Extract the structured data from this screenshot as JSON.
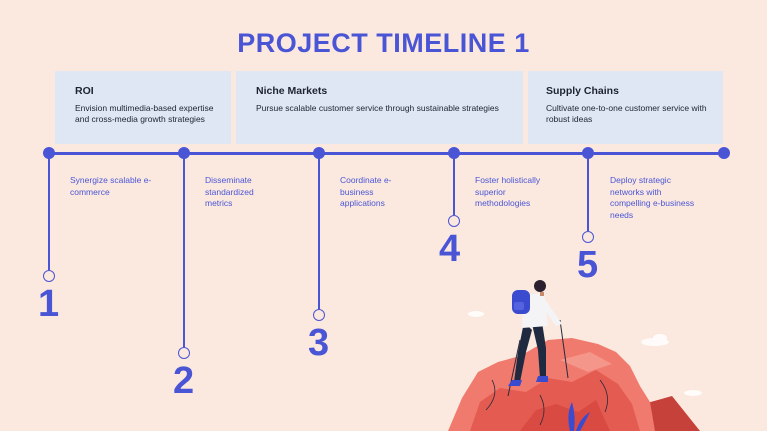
{
  "title": "PROJECT TIMELINE 1",
  "bands": [
    {
      "title": "ROI",
      "desc": "Envision multimedia-based expertise and cross-media growth strategies"
    },
    {
      "title": "Niche Markets",
      "desc": "Pursue scalable customer service through sustainable strategies"
    },
    {
      "title": "Supply Chains",
      "desc": "Cultivate one-to-one customer service with robust ideas"
    }
  ],
  "steps": [
    {
      "number": "1",
      "text": "Synergize scalable e-commerce"
    },
    {
      "number": "2",
      "text": "Disseminate standardized metrics"
    },
    {
      "number": "3",
      "text": "Coordinate e-business applications"
    },
    {
      "number": "4",
      "text": "Foster holistically superior methodologies"
    },
    {
      "number": "5",
      "text": "Deploy strategic networks with compelling e-business needs"
    }
  ],
  "colors": {
    "accent": "#4a55d6",
    "background": "#fbe9df",
    "band": "#dfe7f4",
    "rock": "#f07a6e"
  },
  "illustration": "hiker-on-mountain-icon"
}
